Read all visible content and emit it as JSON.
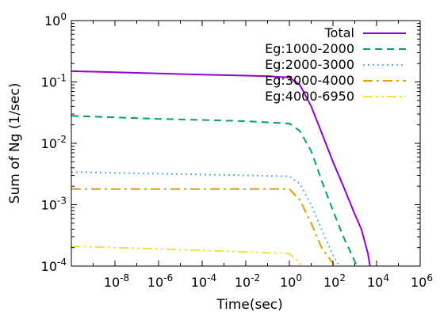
{
  "chart_data": {
    "type": "line",
    "title": "",
    "xlabel": "Time(sec)",
    "ylabel": "Sum of Ng (1/sec)",
    "xscale": "log",
    "yscale": "log",
    "xlim": [
      1e-10,
      1000000.0
    ],
    "ylim": [
      0.0001,
      1
    ],
    "grid": false,
    "legend_position": "top-right",
    "x_ticks": [
      {
        "value": 1e-08,
        "base": "10",
        "exp": "-8"
      },
      {
        "value": 1e-06,
        "base": "10",
        "exp": "-6"
      },
      {
        "value": 0.0001,
        "base": "10",
        "exp": "-4"
      },
      {
        "value": 0.01,
        "base": "10",
        "exp": "-2"
      },
      {
        "value": 1,
        "base": "10",
        "exp": "0"
      },
      {
        "value": 100.0,
        "base": "10",
        "exp": "2"
      },
      {
        "value": 10000.0,
        "base": "10",
        "exp": "4"
      },
      {
        "value": 1000000.0,
        "base": "10",
        "exp": "6"
      }
    ],
    "y_ticks": [
      {
        "value": 0.0001,
        "base": "10",
        "exp": "-4"
      },
      {
        "value": 0.001,
        "base": "10",
        "exp": "-3"
      },
      {
        "value": 0.01,
        "base": "10",
        "exp": "-2"
      },
      {
        "value": 0.1,
        "base": "10",
        "exp": "-1"
      },
      {
        "value": 1,
        "base": "10",
        "exp": "0"
      }
    ],
    "series": [
      {
        "name": "Total",
        "color": "#9400d3",
        "dash": "solid",
        "x": [
          1e-10,
          1e-08,
          1e-06,
          0.0001,
          0.01,
          0.1,
          1,
          3,
          10,
          30,
          100,
          300,
          1000,
          2000,
          4000,
          5000
        ],
        "y": [
          0.15,
          0.144,
          0.138,
          0.132,
          0.127,
          0.124,
          0.118,
          0.09,
          0.04,
          0.015,
          0.005,
          0.002,
          0.0007,
          0.0004,
          0.00016,
          0.0001
        ]
      },
      {
        "name": "Eg:1000-2000",
        "color": "#009e73",
        "dash": "dashed",
        "x": [
          1e-10,
          1e-08,
          1e-06,
          0.0001,
          0.01,
          1,
          3,
          10,
          30,
          100,
          300,
          1000,
          1200
        ],
        "y": [
          0.028,
          0.0265,
          0.025,
          0.024,
          0.023,
          0.021,
          0.016,
          0.0075,
          0.0025,
          0.0008,
          0.0003,
          0.00012,
          0.0001
        ]
      },
      {
        "name": "Eg:2000-3000",
        "color": "#56b4e9",
        "dash": "dotted",
        "x": [
          1e-10,
          1e-08,
          1e-06,
          0.0001,
          0.01,
          1,
          3,
          10,
          30,
          100,
          200
        ],
        "y": [
          0.0034,
          0.0033,
          0.0032,
          0.0031,
          0.003,
          0.0029,
          0.0022,
          0.001,
          0.0004,
          0.00015,
          0.0001
        ]
      },
      {
        "name": "Eg:3000-4000",
        "color": "#e69f00",
        "dash": "dashdot",
        "x": [
          1e-10,
          1e-08,
          1e-06,
          0.0001,
          0.01,
          1,
          3,
          10,
          30,
          100,
          130
        ],
        "y": [
          0.0018,
          0.0018,
          0.0018,
          0.0018,
          0.0018,
          0.0018,
          0.0012,
          0.0005,
          0.0002,
          0.00011,
          0.0001
        ]
      },
      {
        "name": "Eg:4000-6950",
        "color": "#f0e442",
        "dash": "dashdotdot",
        "x": [
          1e-10,
          1e-08,
          1e-06,
          0.0001,
          0.01,
          1,
          2,
          4
        ],
        "y": [
          0.00021,
          0.0002,
          0.00019,
          0.00018,
          0.00017,
          0.00016,
          0.00013,
          0.0001
        ]
      }
    ]
  }
}
